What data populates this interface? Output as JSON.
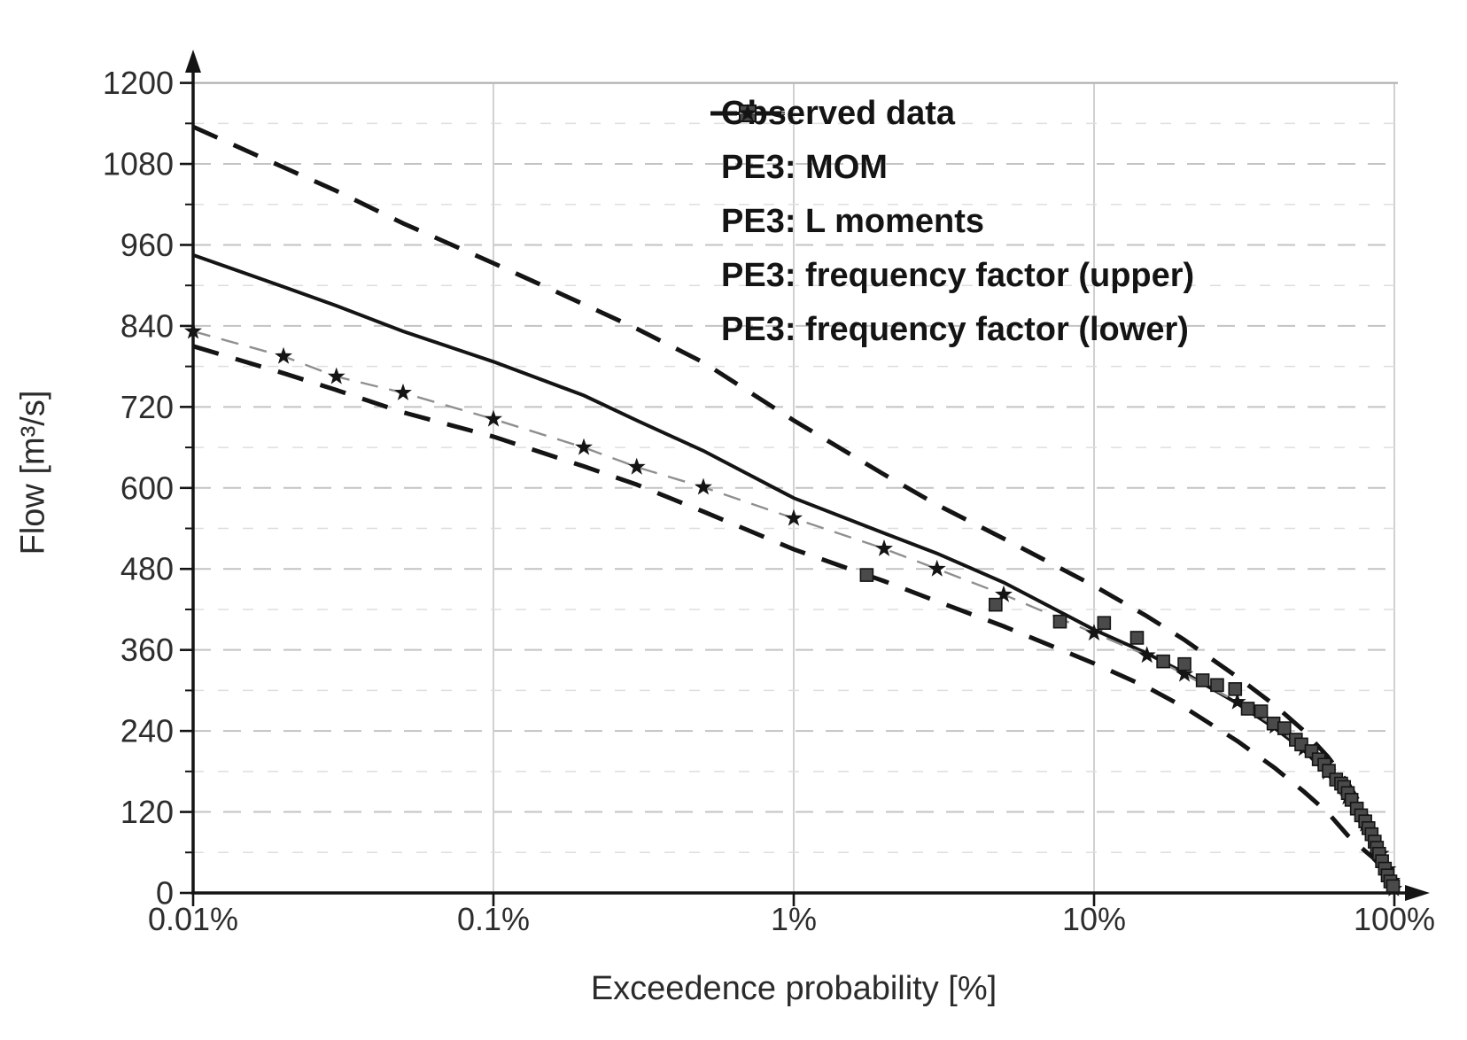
{
  "figure": {
    "background": "#ffffff",
    "text_color": "#2b2b2b"
  },
  "chart_data": {
    "type": "line",
    "title": "",
    "xlabel": "Exceedence probability [%]",
    "ylabel": "Flow [m³/s]",
    "x_scale": "log",
    "xlim_percent": [
      0.01,
      100
    ],
    "ylim": [
      0,
      1200
    ],
    "x_ticks_percent": [
      0.01,
      0.1,
      1,
      10,
      100
    ],
    "x_tick_labels": [
      "0.01%",
      "0.1%",
      "1%",
      "10%",
      "100%"
    ],
    "y_ticks": [
      0,
      120,
      240,
      360,
      480,
      600,
      720,
      840,
      960,
      1080,
      1200
    ],
    "y_tick_labels": [
      "0",
      "120",
      "240",
      "360",
      "480",
      "600",
      "720",
      "840",
      "960",
      "1080",
      "1200"
    ],
    "y_minor_step": 60,
    "grid": {
      "horizontal": "dashed-gray",
      "vertical": "solid-light",
      "top_border": true
    },
    "legend_position": "top-right-inside",
    "colors": {
      "line_black": "#141414",
      "lmoments_gray": "#8f8f8f",
      "square_fill": "#4a4a4a",
      "square_edge": "#141414",
      "grid_major": "#c3c3c3",
      "grid_minor": "#dedede",
      "grid_vertical": "#bdbdbd"
    },
    "series": [
      {
        "name": "Observed data",
        "type": "scatter",
        "marker": "square",
        "points": [
          [
            1.75,
            471
          ],
          [
            4.7,
            427
          ],
          [
            7.7,
            402
          ],
          [
            10.8,
            400
          ],
          [
            13.9,
            378
          ],
          [
            17,
            343
          ],
          [
            20,
            339
          ],
          [
            23,
            315
          ],
          [
            25.7,
            308
          ],
          [
            29.5,
            302
          ],
          [
            32.5,
            273
          ],
          [
            36,
            269
          ],
          [
            39.6,
            251
          ],
          [
            43,
            244
          ],
          [
            47,
            227
          ],
          [
            49,
            220
          ],
          [
            53,
            210
          ],
          [
            56,
            198
          ],
          [
            58.5,
            190
          ],
          [
            60.5,
            181
          ],
          [
            64,
            168
          ],
          [
            66.5,
            162
          ],
          [
            68,
            157
          ],
          [
            70,
            148
          ],
          [
            72,
            138
          ],
          [
            75,
            125
          ],
          [
            77.5,
            115
          ],
          [
            80,
            106
          ],
          [
            82,
            96
          ],
          [
            84,
            87
          ],
          [
            86,
            76
          ],
          [
            87.5,
            67
          ],
          [
            89,
            58
          ],
          [
            91,
            47
          ],
          [
            93,
            36
          ],
          [
            95,
            26
          ],
          [
            97,
            17
          ],
          [
            99,
            10
          ]
        ]
      },
      {
        "name": "PE3: MOM",
        "type": "line",
        "style": "solid",
        "points": [
          [
            0.01,
            945
          ],
          [
            0.02,
            898
          ],
          [
            0.03,
            870
          ],
          [
            0.05,
            832
          ],
          [
            0.1,
            787
          ],
          [
            0.2,
            737
          ],
          [
            0.3,
            700
          ],
          [
            0.5,
            655
          ],
          [
            1,
            585
          ],
          [
            2,
            533
          ],
          [
            3,
            503
          ],
          [
            5,
            460
          ],
          [
            10,
            390
          ],
          [
            15,
            355
          ],
          [
            20,
            326
          ],
          [
            30,
            281
          ],
          [
            40,
            244
          ],
          [
            50,
            211
          ],
          [
            60,
            176
          ],
          [
            70,
            139
          ],
          [
            80,
            99
          ],
          [
            90,
            55
          ],
          [
            95,
            33
          ],
          [
            98,
            16
          ],
          [
            99.5,
            5
          ],
          [
            99.9,
            0
          ]
        ]
      },
      {
        "name": "PE3: L moments",
        "type": "line",
        "style": "dashed-gray",
        "marker": "star",
        "points": [
          [
            0.01,
            832
          ],
          [
            0.02,
            795
          ],
          [
            0.03,
            765
          ],
          [
            0.05,
            741
          ],
          [
            0.1,
            702
          ],
          [
            0.2,
            660
          ],
          [
            0.3,
            631
          ],
          [
            0.5,
            601
          ],
          [
            1,
            555
          ],
          [
            2,
            510
          ],
          [
            3,
            480
          ],
          [
            5,
            442
          ],
          [
            10,
            385
          ],
          [
            15,
            352
          ],
          [
            20,
            324
          ],
          [
            30,
            283
          ],
          [
            40,
            247
          ],
          [
            50,
            214
          ],
          [
            60,
            179
          ],
          [
            70,
            142
          ],
          [
            80,
            102
          ],
          [
            90,
            58
          ],
          [
            95,
            35
          ],
          [
            98,
            18
          ],
          [
            99.5,
            6
          ]
        ]
      },
      {
        "name": "PE3: frequency factor (upper)",
        "type": "line",
        "style": "dashed",
        "points": [
          [
            0.01,
            1135
          ],
          [
            0.02,
            1075
          ],
          [
            0.03,
            1040
          ],
          [
            0.05,
            992
          ],
          [
            0.1,
            933
          ],
          [
            0.2,
            872
          ],
          [
            0.3,
            836
          ],
          [
            0.5,
            786
          ],
          [
            1,
            700
          ],
          [
            2,
            620
          ],
          [
            3,
            575
          ],
          [
            5,
            525
          ],
          [
            10,
            455
          ],
          [
            15,
            410
          ],
          [
            20,
            375
          ],
          [
            30,
            320
          ],
          [
            40,
            278
          ],
          [
            50,
            240
          ],
          [
            60,
            202
          ],
          [
            70,
            163
          ],
          [
            80,
            120
          ],
          [
            90,
            70
          ],
          [
            95,
            42
          ],
          [
            98,
            20
          ],
          [
            99.9,
            0
          ]
        ]
      },
      {
        "name": "PE3: frequency factor (lower)",
        "type": "line",
        "style": "dashed",
        "points": [
          [
            0.01,
            810
          ],
          [
            0.02,
            770
          ],
          [
            0.03,
            745
          ],
          [
            0.05,
            712
          ],
          [
            0.1,
            676
          ],
          [
            0.2,
            632
          ],
          [
            0.3,
            605
          ],
          [
            0.5,
            565
          ],
          [
            1,
            509
          ],
          [
            2,
            462
          ],
          [
            3,
            432
          ],
          [
            5,
            395
          ],
          [
            10,
            340
          ],
          [
            15,
            305
          ],
          [
            20,
            275
          ],
          [
            30,
            225
          ],
          [
            40,
            185
          ],
          [
            50,
            150
          ],
          [
            60,
            119
          ],
          [
            70,
            85
          ],
          [
            80,
            62
          ],
          [
            85,
            52
          ],
          [
            90,
            40
          ],
          [
            95,
            22
          ],
          [
            98,
            8
          ],
          [
            99.5,
            0
          ]
        ]
      }
    ]
  }
}
